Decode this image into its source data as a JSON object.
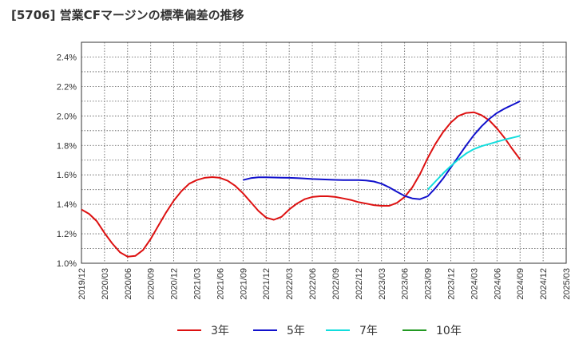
{
  "chart_data": {
    "type": "line",
    "title": "[5706]  営業CFマージンの標準偏差の推移",
    "xlabel": "",
    "ylabel": "",
    "ylim": [
      1.0,
      2.5
    ],
    "yticks": [
      "1.0%",
      "1.2%",
      "1.4%",
      "1.6%",
      "1.8%",
      "2.0%",
      "2.2%",
      "2.4%"
    ],
    "yticks_values": [
      1.0,
      1.2,
      1.4,
      1.6,
      1.8,
      2.0,
      2.2,
      2.4
    ],
    "x_range": [
      "2019/12",
      "2025/03"
    ],
    "xticks": [
      "2019/12",
      "2020/03",
      "2020/06",
      "2020/09",
      "2020/12",
      "2021/03",
      "2021/06",
      "2021/09",
      "2021/12",
      "2022/03",
      "2022/06",
      "2022/09",
      "2022/12",
      "2023/03",
      "2023/06",
      "2023/09",
      "2023/12",
      "2024/03",
      "2024/06",
      "2024/09",
      "2024/12",
      "2025/03"
    ],
    "grid": true,
    "legend_position": "bottom",
    "series": [
      {
        "name": "3年",
        "color": "#dd1111",
        "points": [
          [
            "2019/12",
            1.365
          ],
          [
            "2020/01",
            1.335
          ],
          [
            "2020/02",
            1.285
          ],
          [
            "2020/03",
            1.205
          ],
          [
            "2020/04",
            1.135
          ],
          [
            "2020/05",
            1.075
          ],
          [
            "2020/06",
            1.045
          ],
          [
            "2020/07",
            1.05
          ],
          [
            "2020/08",
            1.09
          ],
          [
            "2020/09",
            1.165
          ],
          [
            "2020/10",
            1.255
          ],
          [
            "2020/11",
            1.345
          ],
          [
            "2020/12",
            1.425
          ],
          [
            "2021/01",
            1.49
          ],
          [
            "2021/02",
            1.54
          ],
          [
            "2021/03",
            1.565
          ],
          [
            "2021/04",
            1.58
          ],
          [
            "2021/05",
            1.585
          ],
          [
            "2021/06",
            1.58
          ],
          [
            "2021/07",
            1.56
          ],
          [
            "2021/08",
            1.525
          ],
          [
            "2021/09",
            1.475
          ],
          [
            "2021/10",
            1.415
          ],
          [
            "2021/11",
            1.355
          ],
          [
            "2021/12",
            1.31
          ],
          [
            "2022/01",
            1.295
          ],
          [
            "2022/02",
            1.315
          ],
          [
            "2022/03",
            1.365
          ],
          [
            "2022/04",
            1.405
          ],
          [
            "2022/05",
            1.435
          ],
          [
            "2022/06",
            1.45
          ],
          [
            "2022/07",
            1.455
          ],
          [
            "2022/08",
            1.455
          ],
          [
            "2022/09",
            1.45
          ],
          [
            "2022/10",
            1.44
          ],
          [
            "2022/11",
            1.43
          ],
          [
            "2022/12",
            1.415
          ],
          [
            "2023/01",
            1.405
          ],
          [
            "2023/02",
            1.395
          ],
          [
            "2023/03",
            1.39
          ],
          [
            "2023/04",
            1.39
          ],
          [
            "2023/05",
            1.41
          ],
          [
            "2023/06",
            1.45
          ],
          [
            "2023/07",
            1.515
          ],
          [
            "2023/08",
            1.605
          ],
          [
            "2023/09",
            1.715
          ],
          [
            "2023/10",
            1.81
          ],
          [
            "2023/11",
            1.89
          ],
          [
            "2023/12",
            1.955
          ],
          [
            "2024/01",
            2.0
          ],
          [
            "2024/02",
            2.02
          ],
          [
            "2024/03",
            2.025
          ],
          [
            "2024/04",
            2.005
          ],
          [
            "2024/05",
            1.97
          ],
          [
            "2024/06",
            1.915
          ],
          [
            "2024/07",
            1.85
          ],
          [
            "2024/08",
            1.775
          ],
          [
            "2024/09",
            1.705
          ]
        ]
      },
      {
        "name": "5年",
        "color": "#1111cc",
        "points": [
          [
            "2021/09",
            1.565
          ],
          [
            "2021/10",
            1.578
          ],
          [
            "2021/11",
            1.583
          ],
          [
            "2021/12",
            1.583
          ],
          [
            "2022/01",
            1.582
          ],
          [
            "2022/02",
            1.581
          ],
          [
            "2022/03",
            1.58
          ],
          [
            "2022/04",
            1.578
          ],
          [
            "2022/05",
            1.575
          ],
          [
            "2022/06",
            1.572
          ],
          [
            "2022/07",
            1.57
          ],
          [
            "2022/08",
            1.568
          ],
          [
            "2022/09",
            1.566
          ],
          [
            "2022/10",
            1.565
          ],
          [
            "2022/11",
            1.565
          ],
          [
            "2022/12",
            1.565
          ],
          [
            "2023/01",
            1.562
          ],
          [
            "2023/02",
            1.555
          ],
          [
            "2023/03",
            1.54
          ],
          [
            "2023/04",
            1.515
          ],
          [
            "2023/05",
            1.485
          ],
          [
            "2023/06",
            1.457
          ],
          [
            "2023/07",
            1.44
          ],
          [
            "2023/08",
            1.435
          ],
          [
            "2023/09",
            1.455
          ],
          [
            "2023/10",
            1.51
          ],
          [
            "2023/11",
            1.575
          ],
          [
            "2023/12",
            1.65
          ],
          [
            "2024/01",
            1.725
          ],
          [
            "2024/02",
            1.8
          ],
          [
            "2024/03",
            1.87
          ],
          [
            "2024/04",
            1.93
          ],
          [
            "2024/05",
            1.98
          ],
          [
            "2024/06",
            2.02
          ],
          [
            "2024/07",
            2.05
          ],
          [
            "2024/08",
            2.075
          ],
          [
            "2024/09",
            2.1
          ]
        ]
      },
      {
        "name": "7年",
        "color": "#11dddd",
        "points": [
          [
            "2023/09",
            1.5
          ],
          [
            "2023/10",
            1.555
          ],
          [
            "2023/11",
            1.61
          ],
          [
            "2023/12",
            1.66
          ],
          [
            "2024/01",
            1.705
          ],
          [
            "2024/02",
            1.745
          ],
          [
            "2024/03",
            1.775
          ],
          [
            "2024/04",
            1.795
          ],
          [
            "2024/05",
            1.81
          ],
          [
            "2024/06",
            1.825
          ],
          [
            "2024/07",
            1.84
          ],
          [
            "2024/08",
            1.852
          ],
          [
            "2024/09",
            1.865
          ]
        ]
      },
      {
        "name": "10年",
        "color": "#229922",
        "points": []
      }
    ]
  }
}
